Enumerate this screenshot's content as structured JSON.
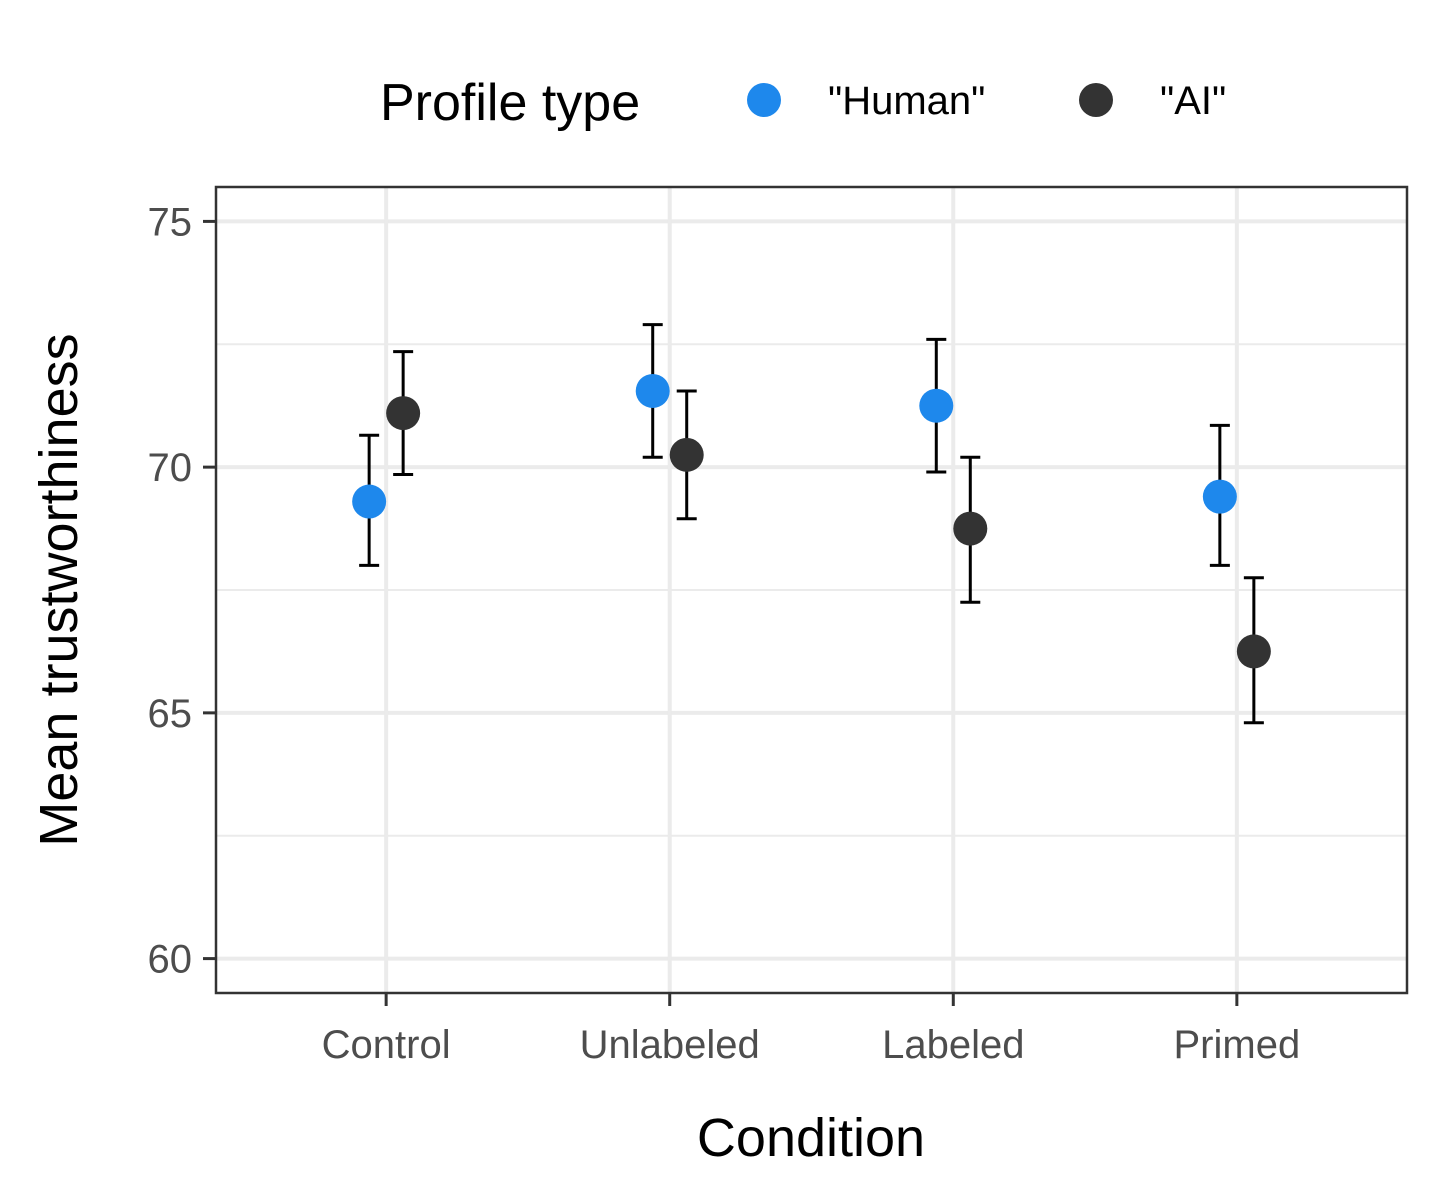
{
  "chart_data": {
    "type": "scatter",
    "xlabel": "Condition",
    "ylabel": "Mean trustworthiness",
    "categories": [
      "Control",
      "Unlabeled",
      "Labeled",
      "Primed"
    ],
    "ylim": [
      59.3,
      75.7
    ],
    "yticks": [
      60,
      65,
      70,
      75
    ],
    "grid": true,
    "legend": {
      "title": "Profile type",
      "position": "top"
    },
    "series": [
      {
        "name": "\"Human\"",
        "color": "#1e88ec",
        "values": [
          69.3,
          71.55,
          71.25,
          69.4
        ],
        "lower": [
          68.0,
          70.2,
          69.9,
          68.0
        ],
        "upper": [
          70.65,
          72.9,
          72.6,
          70.85
        ]
      },
      {
        "name": "\"AI\"",
        "color": "#333333",
        "values": [
          71.1,
          70.25,
          68.75,
          66.25
        ],
        "lower": [
          69.85,
          68.95,
          67.25,
          64.8
        ],
        "upper": [
          72.35,
          71.55,
          70.2,
          67.75
        ]
      }
    ]
  }
}
